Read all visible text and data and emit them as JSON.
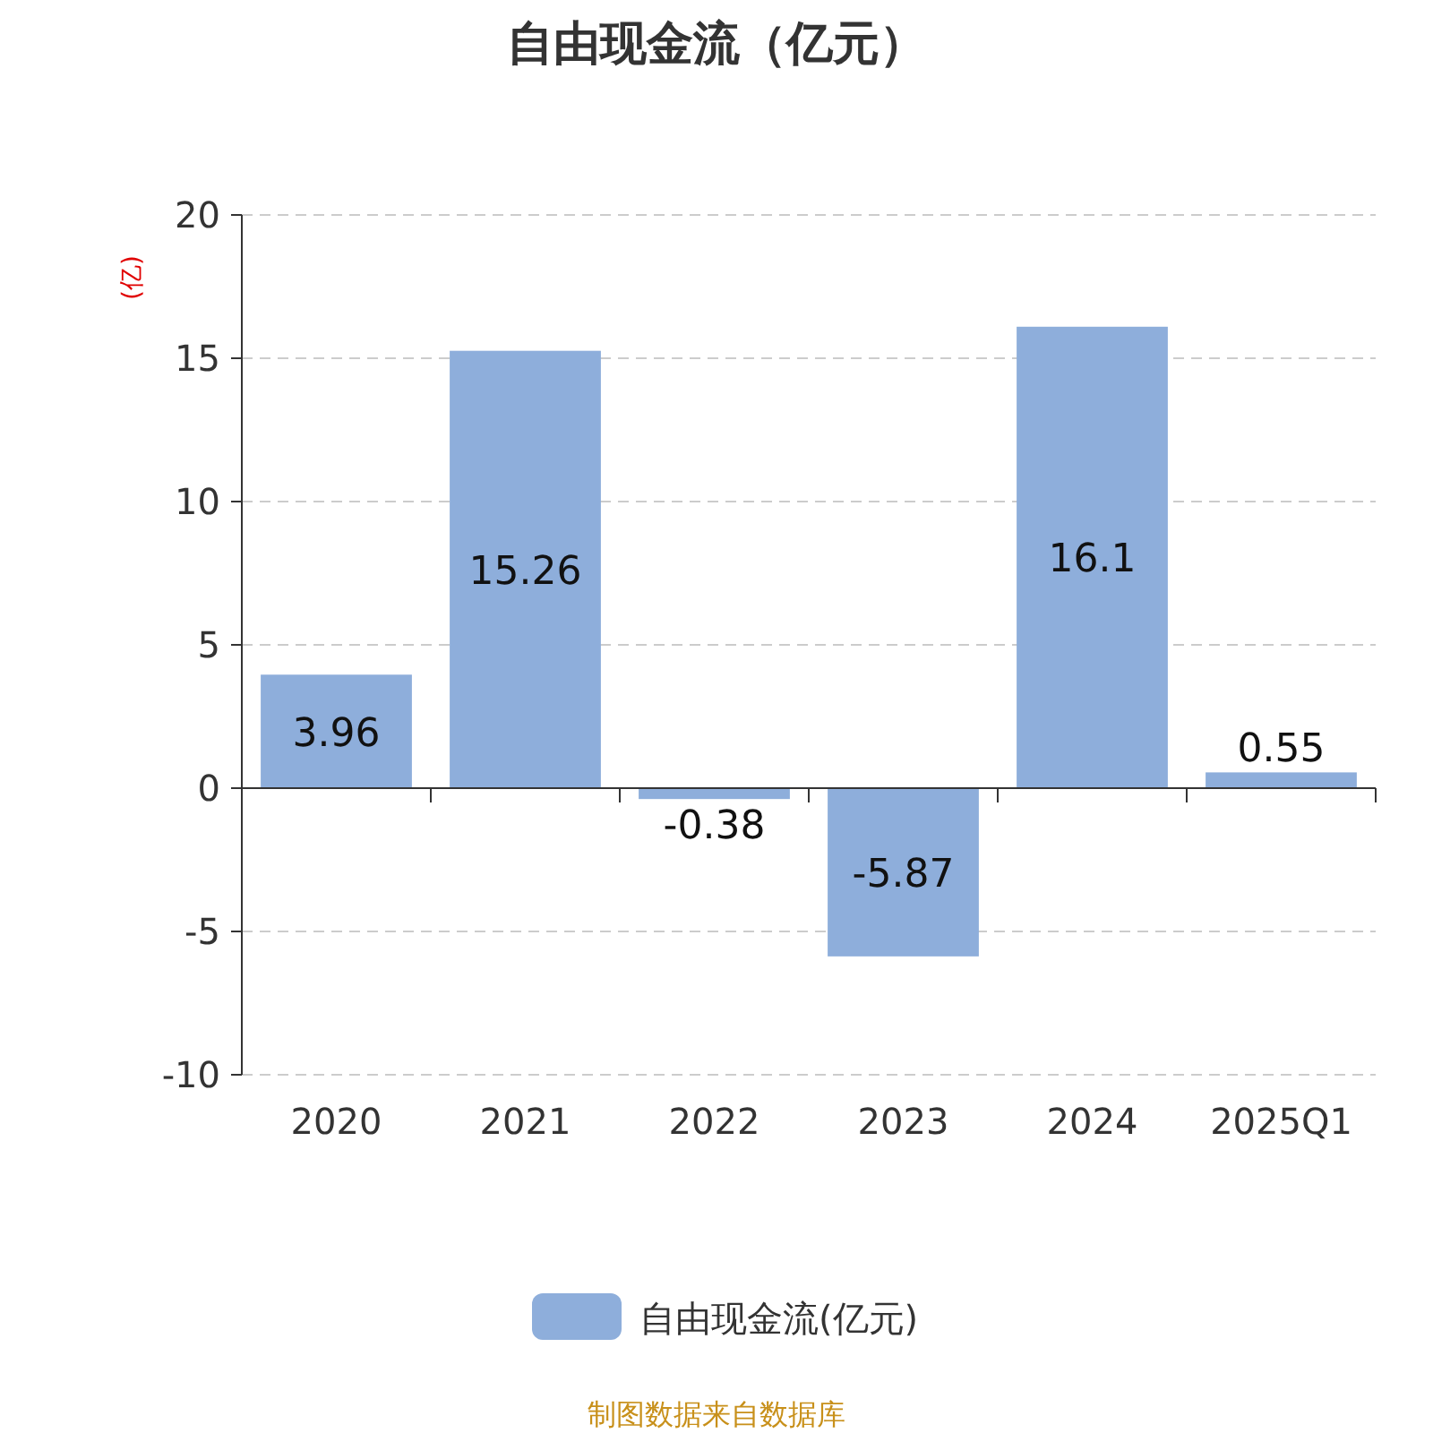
{
  "chart_data": {
    "type": "bar",
    "title": "自由现金流（亿元）",
    "ylabel": "(亿)",
    "categories": [
      "2020",
      "2021",
      "2022",
      "2023",
      "2024",
      "2025Q1"
    ],
    "series": [
      {
        "name": "自由现金流(亿元)",
        "color": "#8eaedb",
        "values": [
          3.96,
          15.26,
          -0.38,
          -5.87,
          16.1,
          0.55
        ]
      }
    ],
    "ylim": [
      -10,
      20
    ],
    "yticks": [
      -10,
      -5,
      0,
      5,
      10,
      15,
      20
    ],
    "grid": "y",
    "legend": "bottom",
    "data_labels": true,
    "annotations": [
      "制图数据来自数据库"
    ]
  }
}
